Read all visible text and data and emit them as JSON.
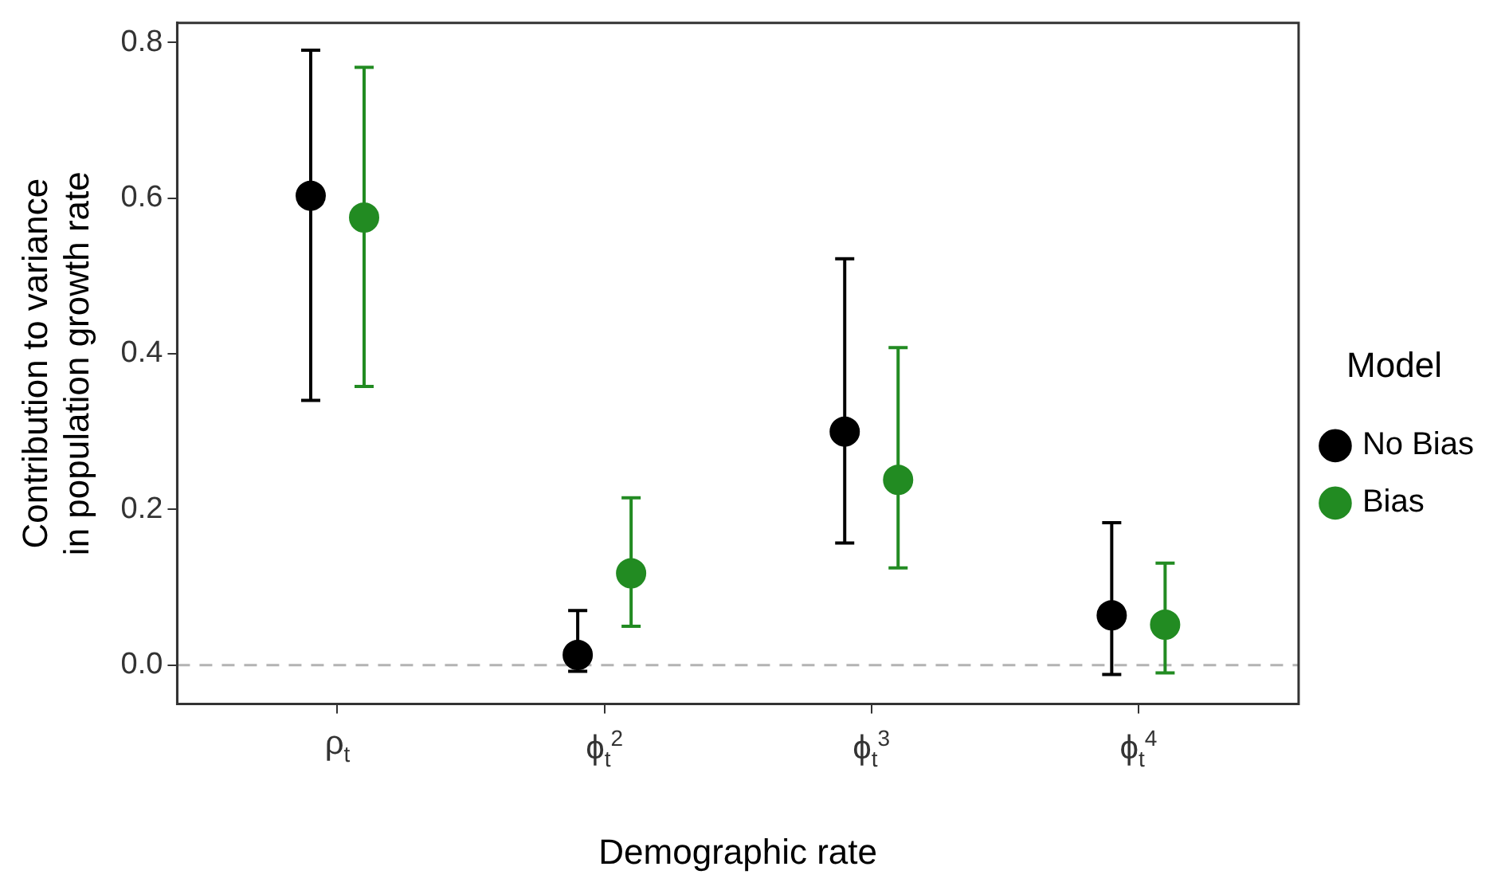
{
  "chart_data": {
    "type": "scatter",
    "xlabel": "Demographic rate",
    "ylabel": "Contribution to variance in population growth rate",
    "legend_title": "Model",
    "legend": "right",
    "grid": false,
    "marker": "circle",
    "categories": [
      "ρ$_{t}$",
      "ϕ$_{t}$$^{2}$",
      "ϕ$_{t}$$^{3}$",
      "ϕ$_{t}$$^{4}$"
    ],
    "ylim": [
      -0.05,
      0.825
    ],
    "yticks": [
      {
        "value": 0,
        "label": "0.0"
      },
      {
        "value": 0.2,
        "label": "0.2"
      },
      {
        "value": 0.4,
        "label": "0.4"
      },
      {
        "value": 0.6,
        "label": "0.6"
      },
      {
        "value": 0.8,
        "label": "0.8"
      }
    ],
    "series": [
      {
        "name": "No Bias",
        "color": "#000000",
        "values": [
          0.603,
          0.013,
          0.3,
          0.064
        ],
        "errors": [
          [
            0.34,
            0.79
          ],
          [
            -0.008,
            0.07
          ],
          [
            0.157,
            0.522
          ],
          [
            -0.012,
            0.183
          ]
        ]
      },
      {
        "name": "Bias",
        "color": "#228b22",
        "values": [
          0.575,
          0.118,
          0.238,
          0.052
        ],
        "errors": [
          [
            0.358,
            0.768
          ],
          [
            0.05,
            0.215
          ],
          [
            0.125,
            0.408
          ],
          [
            -0.01,
            0.131
          ]
        ]
      }
    ],
    "ref_lines": [
      {
        "axis": "y",
        "value": 0,
        "color": "#b3b3b3",
        "line_style": "dashed"
      }
    ]
  }
}
